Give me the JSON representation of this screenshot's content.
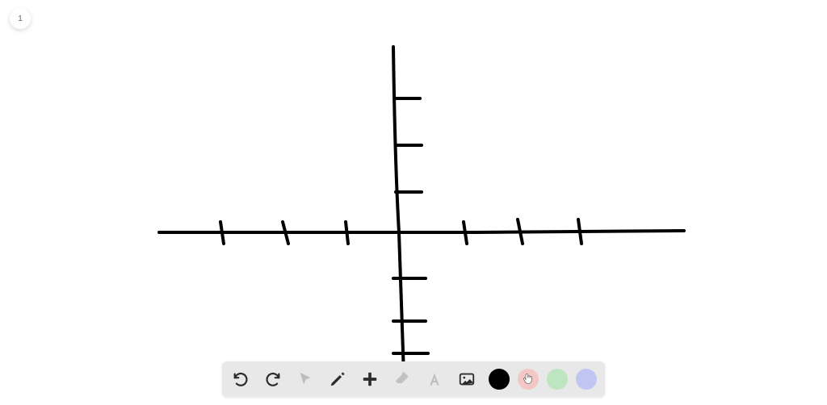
{
  "page_badge": {
    "label": "1"
  },
  "drawing": {
    "stroke_color": "#000000",
    "stroke_width": 4,
    "background_color": "#ffffff",
    "paths": [
      "M 487 58 C 488 130 490 220 494 288 C 496 340 498 400 500 465",
      "M 197 288 C 320 288 460 288 590 288 C 680 288 770 286 847 286",
      "M 490 122 L 520 122",
      "M 490 180 L 522 180",
      "M 490 238 L 522 238",
      "M 487 345 L 527 345",
      "M 487 398 L 527 398",
      "M 487 438 L 530 438",
      "M 273 275 L 277 302",
      "M 350 275 L 357 302",
      "M 428 275 L 431 302",
      "M 574 275 L 578 302",
      "M 641 272 L 647 302",
      "M 716 272 L 720 302"
    ]
  },
  "toolbar": {
    "background": "#e8e8e8",
    "items": {
      "undo": {
        "label": "Undo",
        "enabled": true
      },
      "redo": {
        "label": "Redo",
        "enabled": true
      },
      "select": {
        "label": "Select",
        "enabled": false
      },
      "pen": {
        "label": "Pen",
        "enabled": true
      },
      "add": {
        "label": "Add shape",
        "enabled": true
      },
      "eraser": {
        "label": "Eraser",
        "enabled": false
      },
      "text": {
        "label": "Text",
        "enabled": false
      },
      "image": {
        "label": "Insert image",
        "enabled": true
      }
    },
    "colors": [
      {
        "hex": "#000000",
        "cursor": false
      },
      {
        "hex": "#f4c7c7",
        "cursor": true
      },
      {
        "hex": "#bde5c0",
        "cursor": false
      },
      {
        "hex": "#c0c6f2",
        "cursor": false
      }
    ]
  }
}
